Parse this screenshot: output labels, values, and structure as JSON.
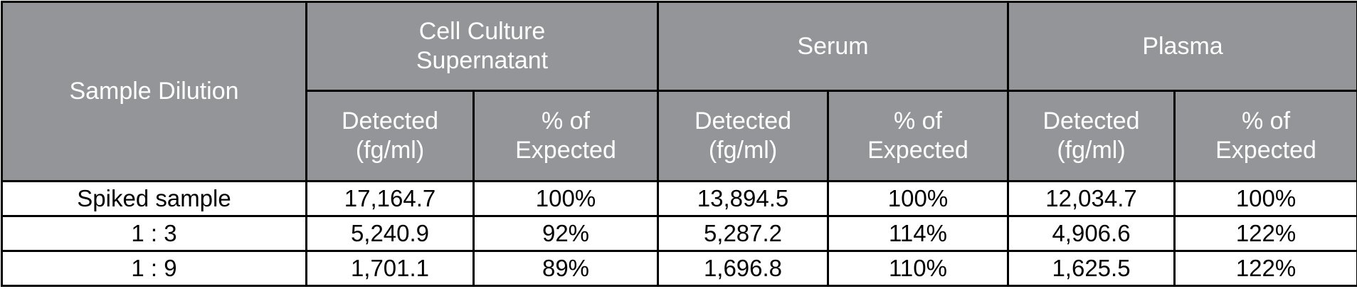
{
  "header": {
    "title": "Sample Dilution",
    "groups": [
      {
        "title": "Cell Culture Supernatant",
        "columns": [
          "Detected (fg/ml)",
          "% of Expected"
        ]
      },
      {
        "title": "Serum",
        "columns": [
          "Detected (fg/ml)",
          "% of Expected"
        ]
      },
      {
        "title": "Plasma",
        "columns": [
          "Detected (fg/ml)",
          "% of Expected"
        ]
      }
    ]
  },
  "table": {
    "rows": [
      [
        "Spiked sample",
        "17,164.7",
        "100%",
        "13,894.5",
        "100%",
        "12,034.7",
        "100%"
      ],
      [
        "1 : 3",
        "5,240.9",
        "92%",
        "5,287.2",
        "114%",
        "4,906.6",
        "122%"
      ],
      [
        "1 : 9",
        "1,701.1",
        "89%",
        "1,696.8",
        "110%",
        "1,625.5",
        "122%"
      ]
    ]
  }
}
